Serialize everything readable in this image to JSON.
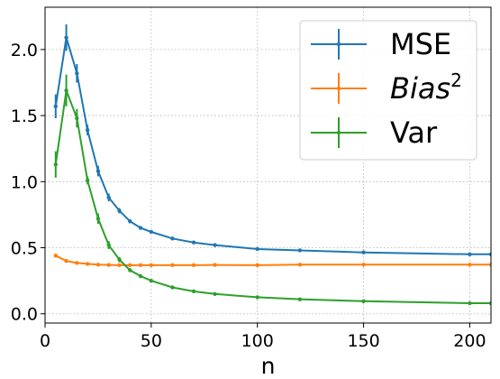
{
  "chart_data": {
    "type": "line",
    "title": "",
    "xlabel": "n",
    "ylabel": "",
    "xlim": [
      0,
      210
    ],
    "ylim": [
      -0.07,
      2.32
    ],
    "xticks": [
      0,
      50,
      100,
      150,
      200
    ],
    "yticks": [
      0.0,
      0.5,
      1.0,
      1.5,
      2.0
    ],
    "xtick_labels": [
      "0",
      "50",
      "100",
      "150",
      "200"
    ],
    "ytick_labels": [
      "0.0",
      "0.5",
      "1.0",
      "1.5",
      "2.0"
    ],
    "grid": true,
    "legend_position": "top-right",
    "x": [
      5,
      10,
      15,
      20,
      25,
      30,
      35,
      40,
      45,
      50,
      60,
      70,
      80,
      100,
      120,
      150,
      200,
      210
    ],
    "series": [
      {
        "name": "MSE",
        "color": "#1f77b4",
        "values": [
          1.57,
          2.09,
          1.82,
          1.39,
          1.08,
          0.88,
          0.78,
          0.7,
          0.65,
          0.62,
          0.57,
          0.54,
          0.52,
          0.49,
          0.48,
          0.465,
          0.45,
          0.45
        ],
        "errors": [
          0.09,
          0.1,
          0.07,
          0.04,
          0.04,
          0.03,
          0.02,
          0.015,
          0.012,
          0.01,
          0.01,
          0.008,
          0.006,
          0.005,
          0.005,
          0.004,
          0.004,
          0.004
        ]
      },
      {
        "name_prefix": "Bias",
        "name_sup": "2",
        "color": "#ff7f0e",
        "values": [
          0.44,
          0.4,
          0.385,
          0.378,
          0.372,
          0.37,
          0.368,
          0.368,
          0.368,
          0.368,
          0.368,
          0.368,
          0.37,
          0.368,
          0.372,
          0.372,
          0.372,
          0.372
        ],
        "errors": [
          0.015,
          0.01,
          0.008,
          0.006,
          0.005,
          0.005,
          0.004,
          0.004,
          0.004,
          0.004,
          0.003,
          0.003,
          0.003,
          0.003,
          0.003,
          0.003,
          0.003,
          0.003
        ]
      },
      {
        "name": "Var",
        "color": "#2ca02c",
        "values": [
          1.13,
          1.69,
          1.48,
          1.01,
          0.72,
          0.52,
          0.41,
          0.33,
          0.285,
          0.25,
          0.2,
          0.17,
          0.15,
          0.125,
          0.11,
          0.095,
          0.08,
          0.08
        ],
        "errors": [
          0.1,
          0.12,
          0.07,
          0.03,
          0.04,
          0.03,
          0.02,
          0.015,
          0.01,
          0.01,
          0.008,
          0.006,
          0.005,
          0.004,
          0.004,
          0.003,
          0.003,
          0.003
        ]
      }
    ]
  }
}
